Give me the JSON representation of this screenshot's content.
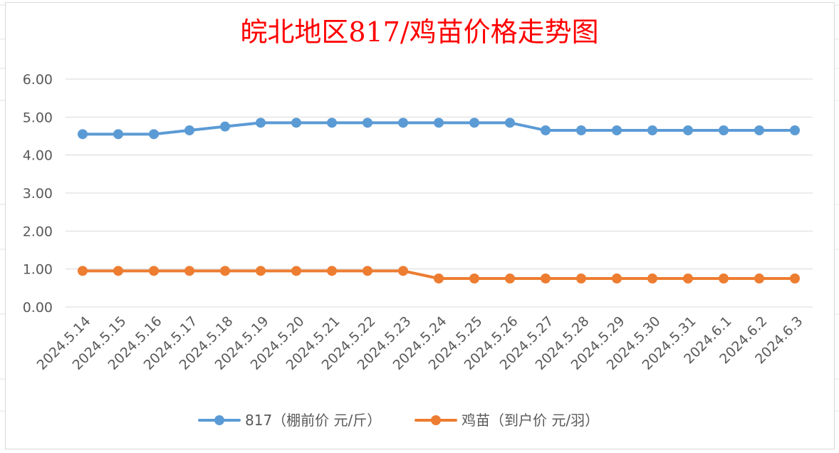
{
  "chart_data": {
    "type": "line",
    "title": "皖北地区817/鸡苗价格走势图",
    "title_color": "#ff0000",
    "xlabel": "",
    "ylabel": "",
    "ylim": [
      0,
      6
    ],
    "y_ticks": [
      "0.00",
      "1.00",
      "2.00",
      "3.00",
      "4.00",
      "5.00",
      "6.00"
    ],
    "grid": true,
    "legend_position": "bottom",
    "categories": [
      "2024.5.14",
      "2024.5.15",
      "2024.5.16",
      "2024.5.17",
      "2024.5.18",
      "2024.5.19",
      "2024.5.20",
      "2024.5.21",
      "2024.5.22",
      "2024.5.23",
      "2024.5.24",
      "2024.5.25",
      "2024.5.26",
      "2024.5.27",
      "2024.5.28",
      "2024.5.29",
      "2024.5.30",
      "2024.5.31",
      "2024.6.1",
      "2024.6.2",
      "2024.6.3"
    ],
    "series": [
      {
        "name": "817（棚前价 元/斤）",
        "color": "#5b9bd5",
        "values": [
          4.55,
          4.55,
          4.55,
          4.65,
          4.75,
          4.85,
          4.85,
          4.85,
          4.85,
          4.85,
          4.85,
          4.85,
          4.85,
          4.65,
          4.65,
          4.65,
          4.65,
          4.65,
          4.65,
          4.65,
          4.65
        ]
      },
      {
        "name": "鸡苗（到户价 元/羽）",
        "color": "#ed7d31",
        "values": [
          0.95,
          0.95,
          0.95,
          0.95,
          0.95,
          0.95,
          0.95,
          0.95,
          0.95,
          0.95,
          0.75,
          0.75,
          0.75,
          0.75,
          0.75,
          0.75,
          0.75,
          0.75,
          0.75,
          0.75,
          0.75
        ]
      }
    ]
  }
}
